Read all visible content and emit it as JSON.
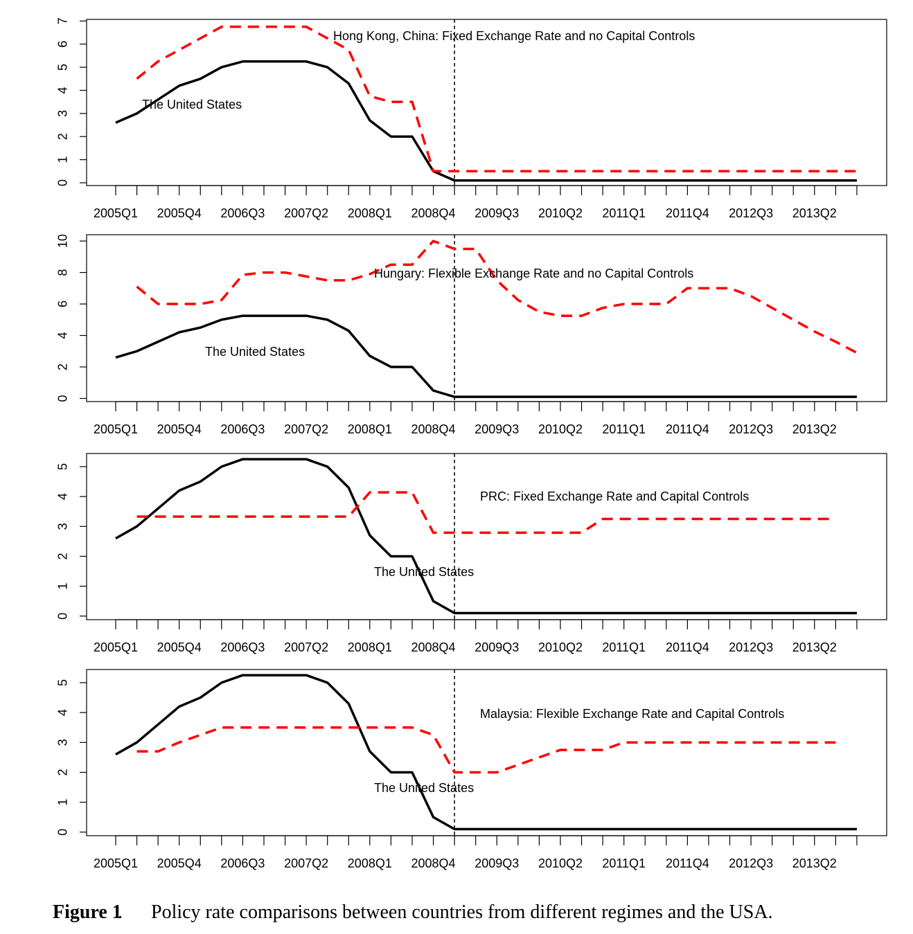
{
  "chart_data": [
    {
      "type": "line",
      "annotation": "Hong Kong, China: Fixed Exchange Rate and no Capital Controls",
      "categories": [
        "2005Q1",
        null,
        null,
        "2005Q4",
        null,
        null,
        "2006Q3",
        null,
        null,
        "2007Q2",
        null,
        null,
        "2008Q1",
        null,
        null,
        "2008Q4",
        null,
        null,
        "2009Q3",
        null,
        null,
        "2010Q2",
        null,
        null,
        "2011Q1",
        null,
        null,
        "2011Q4",
        null,
        null,
        "2012Q3",
        null,
        null,
        "2013Q2",
        null,
        null
      ],
      "ylim": [
        -0.12,
        7.07
      ],
      "yticks": [
        0,
        1,
        2,
        3,
        4,
        5,
        6,
        7
      ],
      "vline_at": 16,
      "series": [
        {
          "name": "The United States",
          "color": "#000000",
          "dashed": false,
          "values": [
            2.6,
            3.0,
            3.6,
            4.2,
            4.5,
            5.0,
            5.25,
            5.25,
            5.25,
            5.25,
            5.0,
            4.3,
            2.7,
            2.0,
            2.0,
            0.5,
            0.1,
            0.1,
            0.1,
            0.1,
            0.1,
            0.1,
            0.1,
            0.1,
            0.1,
            0.1,
            0.1,
            0.1,
            0.1,
            0.1,
            0.1,
            0.1,
            0.1,
            0.1,
            0.1,
            0.1
          ]
        },
        {
          "color": "#ff0000",
          "dashed": true,
          "values": [
            null,
            4.5,
            5.25,
            5.75,
            6.25,
            6.75,
            6.75,
            6.75,
            6.75,
            6.75,
            6.25,
            5.75,
            3.75,
            3.5,
            3.5,
            0.5,
            0.5,
            0.5,
            0.5,
            0.5,
            0.5,
            0.5,
            0.5,
            0.5,
            0.5,
            0.5,
            0.5,
            0.5,
            0.5,
            0.5,
            0.5,
            0.5,
            0.5,
            0.5,
            0.5,
            0.5
          ]
        }
      ]
    },
    {
      "type": "line",
      "annotation": "Hungary: Flexible Exchange Rate and no Capital Controls",
      "categories": [
        "2005Q1",
        null,
        null,
        "2005Q4",
        null,
        null,
        "2006Q3",
        null,
        null,
        "2007Q2",
        null,
        null,
        "2008Q1",
        null,
        null,
        "2008Q4",
        null,
        null,
        "2009Q3",
        null,
        null,
        "2010Q2",
        null,
        null,
        "2011Q1",
        null,
        null,
        "2011Q4",
        null,
        null,
        "2012Q3",
        null,
        null,
        "2013Q2",
        null,
        null
      ],
      "ylim": [
        -0.2,
        10.4
      ],
      "yticks": [
        0,
        2,
        4,
        6,
        8,
        10
      ],
      "vline_at": 16,
      "series": [
        {
          "name": "The United States",
          "color": "#000000",
          "dashed": false,
          "values": [
            2.6,
            3.0,
            3.6,
            4.2,
            4.5,
            5.0,
            5.25,
            5.25,
            5.25,
            5.25,
            5.0,
            4.3,
            2.7,
            2.0,
            2.0,
            0.5,
            0.1,
            0.1,
            0.1,
            0.1,
            0.1,
            0.1,
            0.1,
            0.1,
            0.1,
            0.1,
            0.1,
            0.1,
            0.1,
            0.1,
            0.1,
            0.1,
            0.1,
            0.1,
            0.1,
            0.1
          ]
        },
        {
          "color": "#ff0000",
          "dashed": true,
          "values": [
            null,
            7.1,
            6.0,
            6.0,
            6.0,
            6.25,
            7.85,
            8.0,
            8.0,
            7.75,
            7.5,
            7.5,
            7.9,
            8.5,
            8.5,
            10.0,
            9.5,
            9.5,
            7.5,
            6.25,
            5.5,
            5.25,
            5.25,
            5.75,
            6.0,
            6.0,
            6.0,
            7.0,
            7.0,
            7.0,
            6.5,
            5.75,
            5.0,
            4.25,
            3.6,
            2.9
          ]
        }
      ]
    },
    {
      "type": "line",
      "annotation": "PRC: Fixed Exchange Rate and Capital Controls",
      "categories": [
        "2005Q1",
        null,
        null,
        "2005Q4",
        null,
        null,
        "2006Q3",
        null,
        null,
        "2007Q2",
        null,
        null,
        "2008Q1",
        null,
        null,
        "2008Q4",
        null,
        null,
        "2009Q3",
        null,
        null,
        "2010Q2",
        null,
        null,
        "2011Q1",
        null,
        null,
        "2011Q4",
        null,
        null,
        "2012Q3",
        null,
        null,
        "2013Q2",
        null,
        null
      ],
      "ylim": [
        -0.12,
        5.44
      ],
      "yticks": [
        0,
        1,
        2,
        3,
        4,
        5
      ],
      "vline_at": 16,
      "series": [
        {
          "name": "The United States",
          "color": "#000000",
          "dashed": false,
          "values": [
            2.6,
            3.0,
            3.6,
            4.2,
            4.5,
            5.0,
            5.25,
            5.25,
            5.25,
            5.25,
            5.0,
            4.3,
            2.7,
            2.0,
            2.0,
            0.5,
            0.1,
            0.1,
            0.1,
            0.1,
            0.1,
            0.1,
            0.1,
            0.1,
            0.1,
            0.1,
            0.1,
            0.1,
            0.1,
            0.1,
            0.1,
            0.1,
            0.1,
            0.1,
            0.1,
            0.1
          ]
        },
        {
          "color": "#ff0000",
          "dashed": true,
          "values": [
            null,
            3.33,
            3.33,
            3.33,
            3.33,
            3.33,
            3.33,
            3.33,
            3.33,
            3.33,
            3.33,
            3.33,
            4.14,
            4.14,
            4.14,
            2.79,
            2.79,
            2.79,
            2.79,
            2.79,
            2.79,
            2.79,
            2.79,
            3.25,
            3.25,
            3.25,
            3.25,
            3.25,
            3.25,
            3.25,
            3.25,
            3.25,
            3.25,
            3.25,
            3.25,
            null
          ]
        }
      ]
    },
    {
      "type": "line",
      "annotation": "Malaysia: Flexible Exchange Rate and Capital Controls",
      "categories": [
        "2005Q1",
        null,
        null,
        "2005Q4",
        null,
        null,
        "2006Q3",
        null,
        null,
        "2007Q2",
        null,
        null,
        "2008Q1",
        null,
        null,
        "2008Q4",
        null,
        null,
        "2009Q3",
        null,
        null,
        "2010Q2",
        null,
        null,
        "2011Q1",
        null,
        null,
        "2011Q4",
        null,
        null,
        "2012Q3",
        null,
        null,
        "2013Q2",
        null,
        null
      ],
      "ylim": [
        -0.12,
        5.44
      ],
      "yticks": [
        0,
        1,
        2,
        3,
        4,
        5
      ],
      "vline_at": 16,
      "series": [
        {
          "name": "The United States",
          "color": "#000000",
          "dashed": false,
          "values": [
            2.6,
            3.0,
            3.6,
            4.2,
            4.5,
            5.0,
            5.25,
            5.25,
            5.25,
            5.25,
            5.0,
            4.3,
            2.7,
            2.0,
            2.0,
            0.5,
            0.1,
            0.1,
            0.1,
            0.1,
            0.1,
            0.1,
            0.1,
            0.1,
            0.1,
            0.1,
            0.1,
            0.1,
            0.1,
            0.1,
            0.1,
            0.1,
            0.1,
            0.1,
            0.1,
            0.1
          ]
        },
        {
          "color": "#ff0000",
          "dashed": true,
          "values": [
            null,
            2.7,
            2.7,
            3.0,
            3.25,
            3.5,
            3.5,
            3.5,
            3.5,
            3.5,
            3.5,
            3.5,
            3.5,
            3.5,
            3.5,
            3.25,
            2.0,
            2.0,
            2.0,
            2.25,
            2.5,
            2.75,
            2.75,
            2.75,
            3.0,
            3.0,
            3.0,
            3.0,
            3.0,
            3.0,
            3.0,
            3.0,
            3.0,
            3.0,
            3.0,
            null
          ]
        }
      ]
    }
  ],
  "caption": {
    "label": "Figure 1",
    "text": "Policy rate comparisons between countries from different regimes and the USA."
  }
}
